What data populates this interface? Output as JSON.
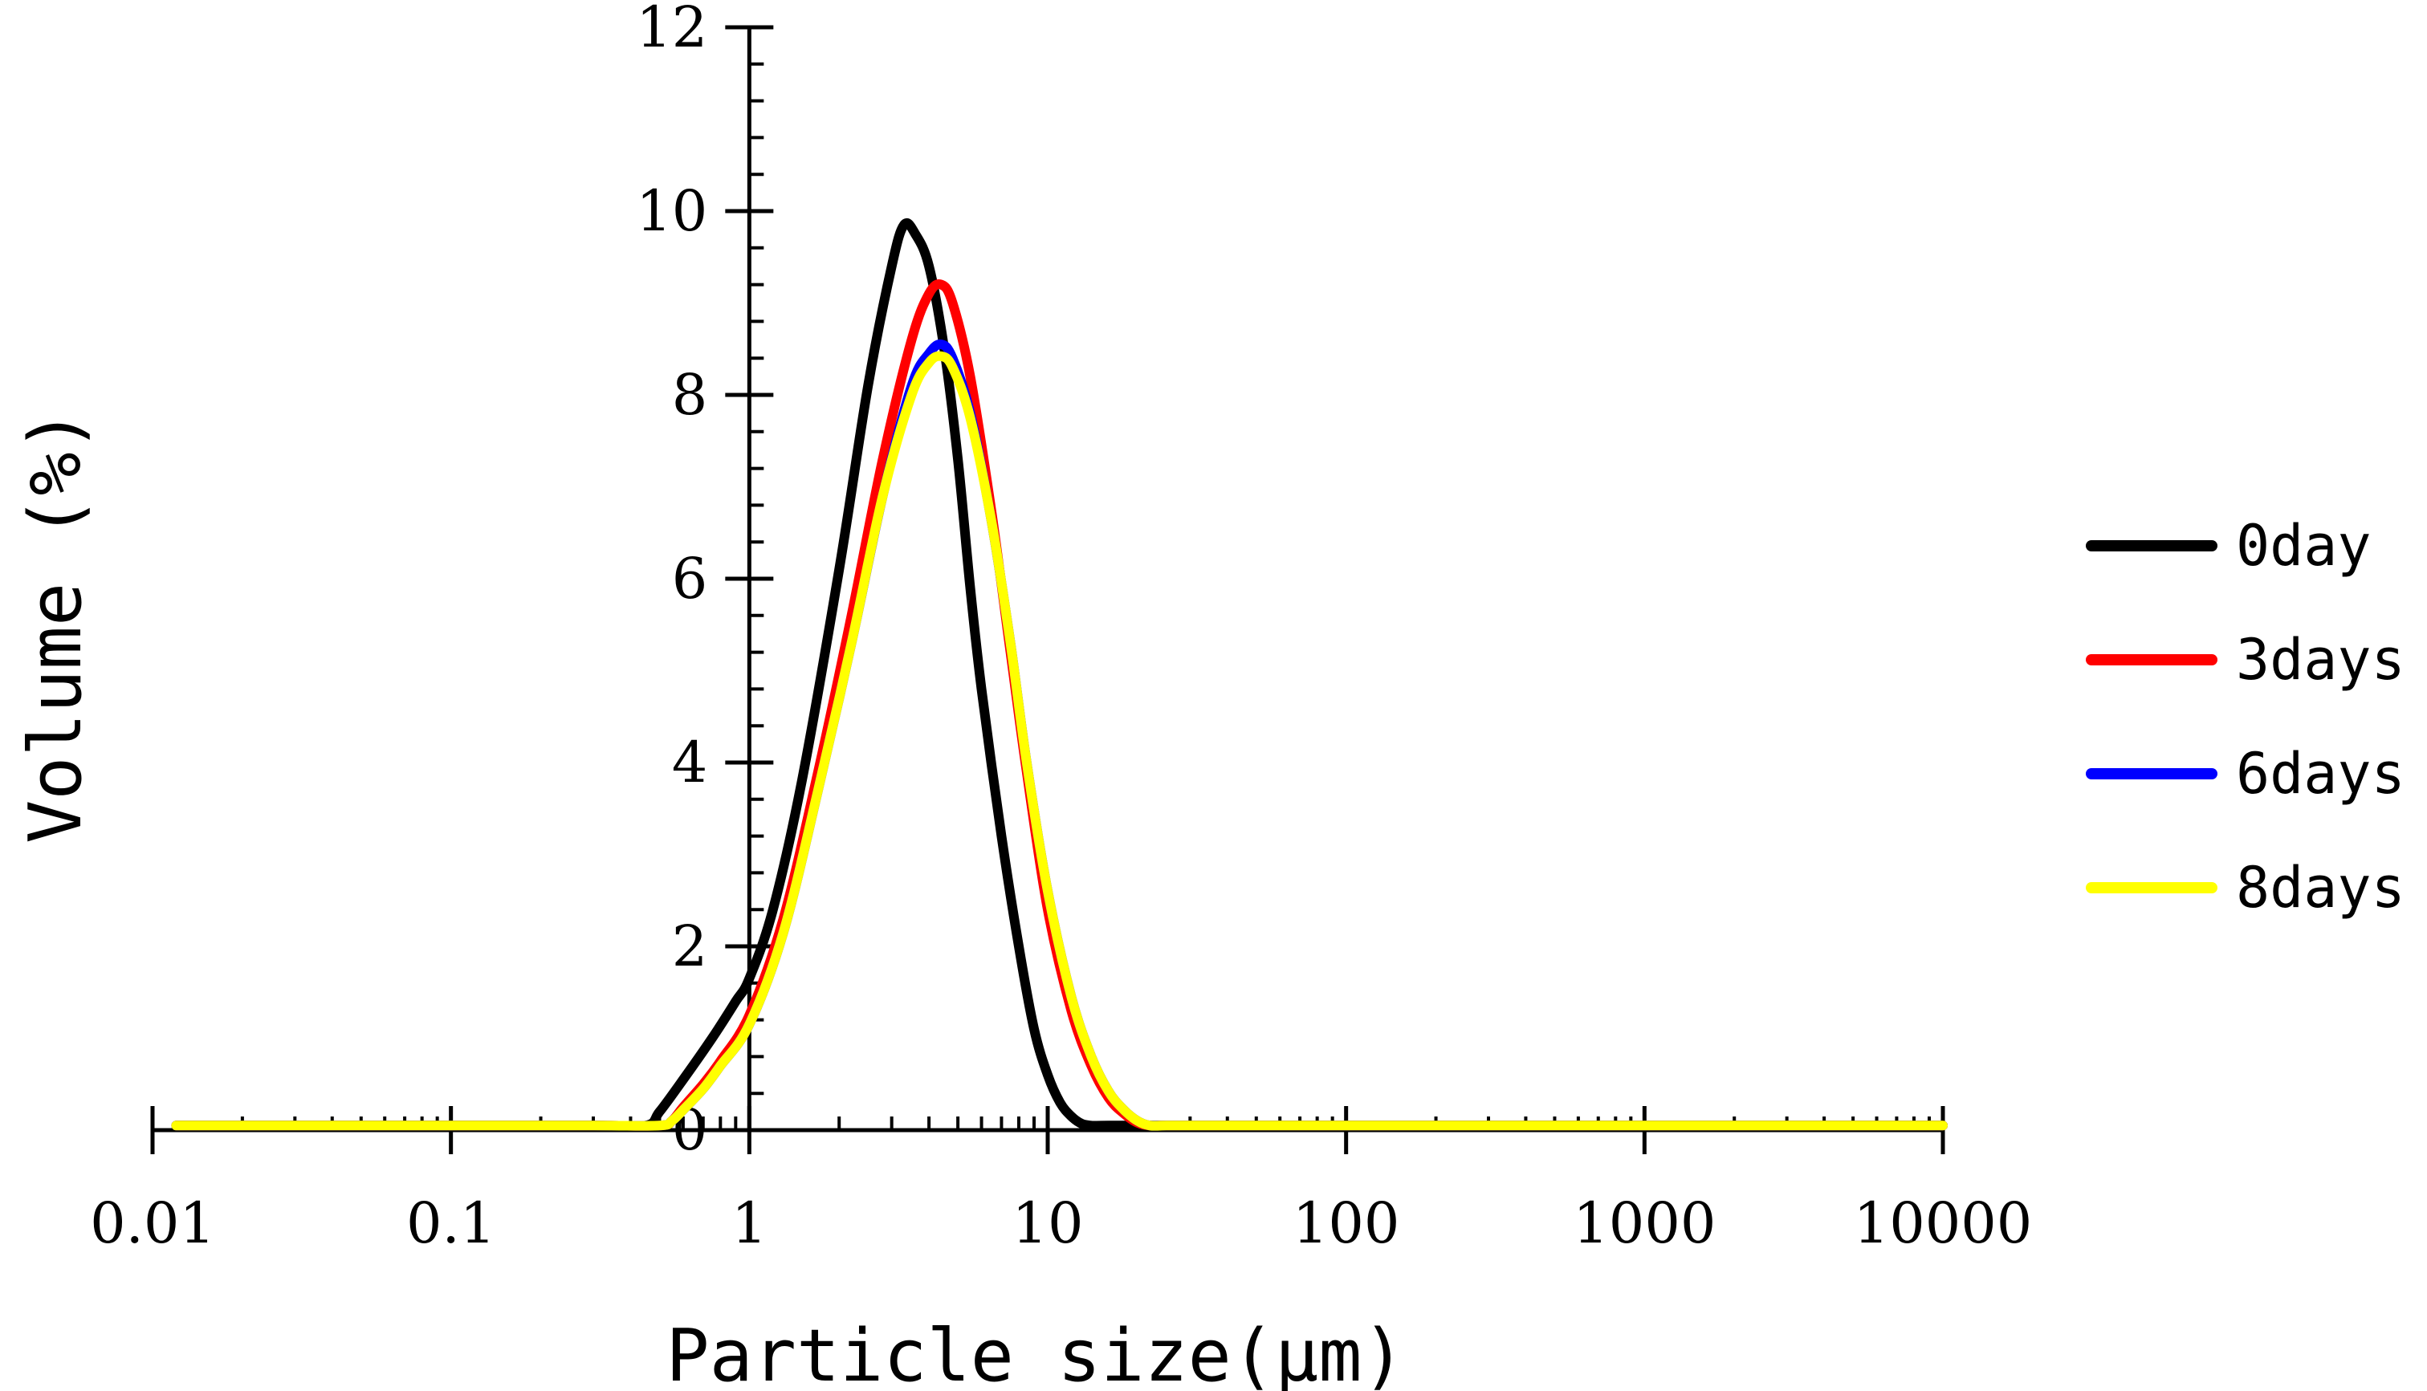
{
  "chart_data": {
    "type": "line",
    "title": "",
    "xlabel": "Particle size(μm)",
    "ylabel": "Volume (%)",
    "xscale": "log",
    "xlim": [
      0.01,
      10000
    ],
    "ylim": [
      0,
      12
    ],
    "xticks": [
      0.01,
      0.1,
      1,
      10,
      100,
      1000,
      10000
    ],
    "xtick_labels": [
      "0.01",
      "0.1",
      "1",
      "10",
      "100",
      "1000",
      "10000"
    ],
    "yticks": [
      0,
      2,
      4,
      6,
      8,
      10,
      12
    ],
    "ytick_labels": [
      "0",
      "2",
      "4",
      "6",
      "8",
      "10",
      "12"
    ],
    "grid": false,
    "legend_position": "right",
    "series": [
      {
        "name": "0day",
        "color": "#000000",
        "x": [
          0.012,
          0.1,
          0.3,
          0.45,
          0.5,
          0.6,
          0.75,
          0.9,
          1.0,
          1.2,
          1.5,
          2.0,
          2.5,
          3.0,
          3.3,
          3.6,
          4.0,
          4.5,
          5.0,
          5.5,
          6.0,
          7.0,
          8.0,
          9.0,
          10.0,
          11.0,
          12.0,
          13.0,
          14.0,
          16.0,
          20.0,
          30.0,
          100,
          1000,
          10000
        ],
        "y": [
          0.05,
          0.05,
          0.05,
          0.05,
          0.2,
          0.55,
          1.0,
          1.4,
          1.65,
          2.4,
          3.8,
          6.1,
          8.1,
          9.4,
          9.85,
          9.75,
          9.4,
          8.5,
          7.3,
          5.9,
          4.8,
          3.2,
          2.0,
          1.1,
          0.6,
          0.3,
          0.15,
          0.07,
          0.05,
          0.05,
          0.05,
          0.05,
          0.05,
          0.05,
          0.05
        ]
      },
      {
        "name": "3days",
        "color": "#ff0000",
        "x": [
          0.012,
          0.1,
          0.3,
          0.5,
          0.55,
          0.6,
          0.7,
          0.8,
          1.0,
          1.3,
          1.7,
          2.2,
          2.8,
          3.5,
          4.0,
          4.4,
          4.8,
          5.5,
          6.5,
          7.5,
          8.5,
          10.0,
          12.0,
          14.0,
          16.0,
          18.0,
          20.0,
          22.0,
          25.0,
          30.0,
          100,
          1000,
          10000
        ],
        "y": [
          0.05,
          0.05,
          0.05,
          0.05,
          0.1,
          0.25,
          0.5,
          0.75,
          1.25,
          2.3,
          3.9,
          5.6,
          7.3,
          8.6,
          9.1,
          9.2,
          9.0,
          8.2,
          6.7,
          5.2,
          3.9,
          2.4,
          1.3,
          0.7,
          0.35,
          0.18,
          0.08,
          0.05,
          0.05,
          0.05,
          0.05,
          0.05,
          0.05
        ]
      },
      {
        "name": "6days",
        "color": "#0000ff",
        "x": [
          0.012,
          0.1,
          0.3,
          0.5,
          0.55,
          0.6,
          0.7,
          0.8,
          1.0,
          1.3,
          1.7,
          2.2,
          2.8,
          3.5,
          4.0,
          4.4,
          4.8,
          5.5,
          6.5,
          7.5,
          8.5,
          10.0,
          12.0,
          14.0,
          16.0,
          18.0,
          20.0,
          22.0,
          25.0,
          30.0,
          100,
          1000,
          10000
        ],
        "y": [
          0.05,
          0.05,
          0.05,
          0.05,
          0.1,
          0.22,
          0.45,
          0.7,
          1.15,
          2.15,
          3.7,
          5.3,
          6.9,
          8.1,
          8.45,
          8.55,
          8.4,
          7.8,
          6.6,
          5.3,
          4.0,
          2.6,
          1.45,
          0.8,
          0.42,
          0.22,
          0.1,
          0.05,
          0.05,
          0.05,
          0.05,
          0.05,
          0.05
        ]
      },
      {
        "name": "8days",
        "color": "#ffff00",
        "x": [
          0.012,
          0.1,
          0.3,
          0.5,
          0.55,
          0.6,
          0.7,
          0.8,
          1.0,
          1.3,
          1.7,
          2.2,
          2.8,
          3.5,
          4.0,
          4.4,
          4.8,
          5.5,
          6.5,
          7.5,
          8.5,
          10.0,
          12.0,
          14.0,
          16.0,
          18.0,
          20.0,
          22.0,
          25.0,
          30.0,
          100,
          1000,
          10000
        ],
        "y": [
          0.05,
          0.05,
          0.05,
          0.05,
          0.1,
          0.22,
          0.45,
          0.7,
          1.15,
          2.15,
          3.7,
          5.3,
          6.9,
          8.0,
          8.35,
          8.42,
          8.3,
          7.75,
          6.6,
          5.3,
          4.0,
          2.6,
          1.45,
          0.8,
          0.42,
          0.22,
          0.1,
          0.05,
          0.05,
          0.05,
          0.05,
          0.05,
          0.05
        ]
      }
    ]
  }
}
